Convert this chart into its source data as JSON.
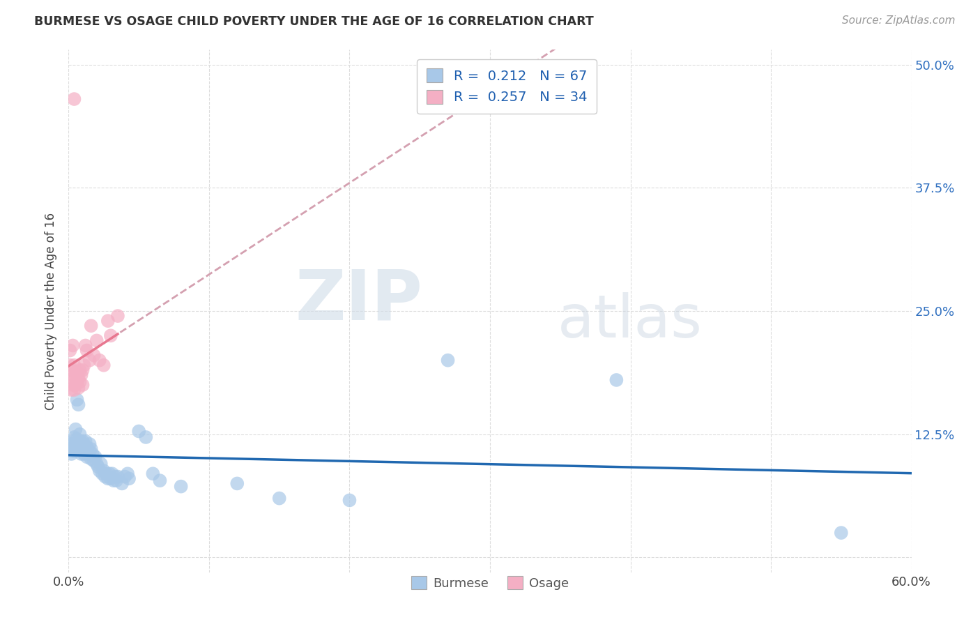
{
  "title": "BURMESE VS OSAGE CHILD POVERTY UNDER THE AGE OF 16 CORRELATION CHART",
  "source": "Source: ZipAtlas.com",
  "ylabel": "Child Poverty Under the Age of 16",
  "xlim": [
    0.0,
    0.6
  ],
  "ylim": [
    -0.02,
    0.52
  ],
  "plot_ylim": [
    0.0,
    0.5
  ],
  "xticks": [
    0.0,
    0.1,
    0.2,
    0.3,
    0.4,
    0.5,
    0.6
  ],
  "xtick_labels": [
    "0.0%",
    "",
    "",
    "",
    "",
    "",
    "60.0%"
  ],
  "yticks": [
    0.0,
    0.125,
    0.25,
    0.375,
    0.5
  ],
  "ytick_labels_right": [
    "",
    "12.5%",
    "25.0%",
    "37.5%",
    "50.0%"
  ],
  "burmese_color": "#a8c8e8",
  "osage_color": "#f4afc4",
  "burmese_line_color": "#2068b0",
  "osage_line_color": "#e87890",
  "osage_dashed_color": "#d4a0b0",
  "burmese_R": 0.212,
  "burmese_N": 67,
  "osage_R": 0.257,
  "osage_N": 34,
  "legend_label_blue": "Burmese",
  "legend_label_pink": "Osage",
  "watermark_zip": "ZIP",
  "watermark_atlas": "atlas",
  "background_color": "#ffffff",
  "grid_color": "#dddddd",
  "burmese_scatter": [
    [
      0.001,
      0.11
    ],
    [
      0.002,
      0.105
    ],
    [
      0.002,
      0.115
    ],
    [
      0.003,
      0.108
    ],
    [
      0.003,
      0.118
    ],
    [
      0.004,
      0.112
    ],
    [
      0.004,
      0.122
    ],
    [
      0.005,
      0.108
    ],
    [
      0.005,
      0.115
    ],
    [
      0.005,
      0.13
    ],
    [
      0.006,
      0.11
    ],
    [
      0.006,
      0.12
    ],
    [
      0.006,
      0.16
    ],
    [
      0.007,
      0.155
    ],
    [
      0.007,
      0.112
    ],
    [
      0.008,
      0.108
    ],
    [
      0.008,
      0.118
    ],
    [
      0.008,
      0.125
    ],
    [
      0.009,
      0.105
    ],
    [
      0.009,
      0.115
    ],
    [
      0.01,
      0.108
    ],
    [
      0.01,
      0.118
    ],
    [
      0.011,
      0.105
    ],
    [
      0.011,
      0.115
    ],
    [
      0.012,
      0.108
    ],
    [
      0.012,
      0.118
    ],
    [
      0.013,
      0.102
    ],
    [
      0.013,
      0.112
    ],
    [
      0.014,
      0.105
    ],
    [
      0.015,
      0.108
    ],
    [
      0.015,
      0.115
    ],
    [
      0.016,
      0.1
    ],
    [
      0.016,
      0.11
    ],
    [
      0.017,
      0.105
    ],
    [
      0.018,
      0.098
    ],
    [
      0.019,
      0.102
    ],
    [
      0.02,
      0.095
    ],
    [
      0.021,
      0.092
    ],
    [
      0.022,
      0.088
    ],
    [
      0.023,
      0.095
    ],
    [
      0.024,
      0.085
    ],
    [
      0.025,
      0.088
    ],
    [
      0.026,
      0.082
    ],
    [
      0.027,
      0.085
    ],
    [
      0.028,
      0.08
    ],
    [
      0.029,
      0.085
    ],
    [
      0.03,
      0.08
    ],
    [
      0.031,
      0.085
    ],
    [
      0.032,
      0.078
    ],
    [
      0.033,
      0.082
    ],
    [
      0.034,
      0.078
    ],
    [
      0.035,
      0.082
    ],
    [
      0.038,
      0.075
    ],
    [
      0.04,
      0.082
    ],
    [
      0.042,
      0.085
    ],
    [
      0.043,
      0.08
    ],
    [
      0.05,
      0.128
    ],
    [
      0.055,
      0.122
    ],
    [
      0.06,
      0.085
    ],
    [
      0.065,
      0.078
    ],
    [
      0.08,
      0.072
    ],
    [
      0.12,
      0.075
    ],
    [
      0.15,
      0.06
    ],
    [
      0.2,
      0.058
    ],
    [
      0.27,
      0.2
    ],
    [
      0.39,
      0.18
    ],
    [
      0.55,
      0.025
    ]
  ],
  "osage_scatter": [
    [
      0.001,
      0.195
    ],
    [
      0.001,
      0.21
    ],
    [
      0.002,
      0.17
    ],
    [
      0.002,
      0.19
    ],
    [
      0.003,
      0.175
    ],
    [
      0.003,
      0.185
    ],
    [
      0.003,
      0.215
    ],
    [
      0.004,
      0.17
    ],
    [
      0.004,
      0.18
    ],
    [
      0.004,
      0.195
    ],
    [
      0.004,
      0.465
    ],
    [
      0.005,
      0.175
    ],
    [
      0.005,
      0.185
    ],
    [
      0.006,
      0.178
    ],
    [
      0.006,
      0.188
    ],
    [
      0.007,
      0.172
    ],
    [
      0.007,
      0.182
    ],
    [
      0.008,
      0.178
    ],
    [
      0.008,
      0.19
    ],
    [
      0.009,
      0.185
    ],
    [
      0.01,
      0.175
    ],
    [
      0.01,
      0.19
    ],
    [
      0.011,
      0.195
    ],
    [
      0.012,
      0.215
    ],
    [
      0.013,
      0.21
    ],
    [
      0.015,
      0.2
    ],
    [
      0.016,
      0.235
    ],
    [
      0.018,
      0.205
    ],
    [
      0.02,
      0.22
    ],
    [
      0.022,
      0.2
    ],
    [
      0.025,
      0.195
    ],
    [
      0.028,
      0.24
    ],
    [
      0.03,
      0.225
    ],
    [
      0.035,
      0.245
    ]
  ]
}
